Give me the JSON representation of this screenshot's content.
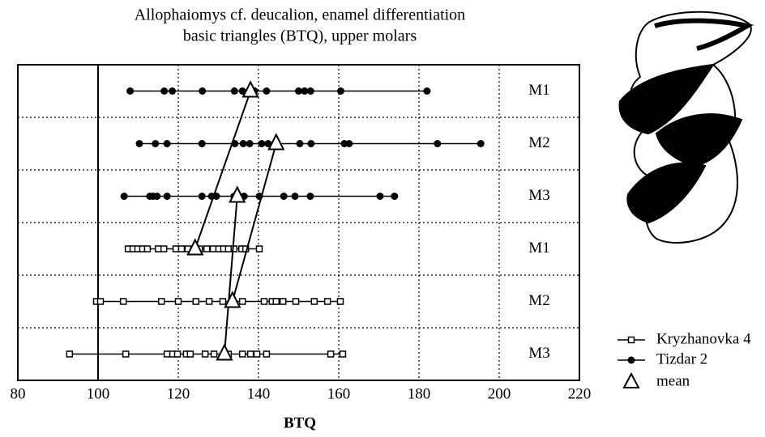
{
  "chart_data": {
    "type": "strip",
    "title": "Allophaiomys cf. deucalion, enamel differentiation",
    "subtitle": "basic triangles (BTQ), upper molars",
    "x_label": "BTQ",
    "xlim": [
      80,
      220
    ],
    "xticks": [
      80,
      100,
      120,
      140,
      160,
      180,
      200,
      220
    ],
    "xref": 100,
    "grid": true,
    "categories": [
      "M1",
      "M2",
      "M3",
      "M1",
      "M2",
      "M3"
    ],
    "mean_label": "mean",
    "series": [
      {
        "name": "Kryzhanovka 4",
        "marker": "square",
        "color": "#000000",
        "values": [
          null,
          null,
          null,
          [
            107.5,
            108.7,
            109.9,
            111.1,
            112.3,
            115,
            116.4,
            119.4,
            120.8,
            122.4,
            125.3,
            127.1,
            128.7,
            130.1,
            131.3,
            132.5,
            133.9,
            135.8,
            136.8,
            140.2
          ],
          [
            99.6,
            100.6,
            106.3,
            115.8,
            120,
            124.4,
            127.7,
            131.1,
            136,
            141.4,
            143.4,
            144.4,
            146.1,
            149.3,
            153.9,
            157.2,
            160.4
          ],
          [
            92.9,
            106.9,
            117.2,
            118.6,
            119.8,
            122,
            123,
            126.7,
            128.9,
            132.5,
            136,
            138,
            139.6,
            142,
            158,
            161
          ]
        ],
        "means": [
          null,
          null,
          null,
          124.2,
          133.5,
          131.5
        ]
      },
      {
        "name": "Tizdar 2",
        "marker": "circle",
        "color": "#000000",
        "values": [
          [
            108,
            116.5,
            118.5,
            126,
            134,
            136,
            139,
            142,
            150,
            151.5,
            153,
            160.5,
            182
          ],
          [
            110.3,
            114.3,
            117.2,
            125.9,
            134.1,
            136.2,
            137.8,
            140.8,
            142.4,
            150.3,
            153.1,
            161.4,
            162.6,
            184.6,
            195.4
          ],
          [
            106.5,
            112.9,
            113.7,
            114.7,
            117.2,
            125.9,
            128.3,
            129.5,
            133.9,
            136.4,
            140.2,
            146.3,
            149.1,
            152.9,
            170.3,
            173.9
          ],
          null,
          null,
          null
        ],
        "means": [
          138,
          144.4,
          134.7,
          null,
          null,
          null
        ]
      }
    ]
  }
}
